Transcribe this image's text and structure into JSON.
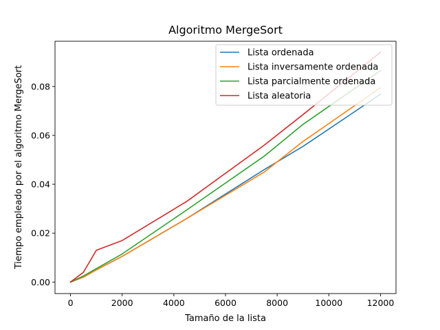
{
  "chart_data": {
    "type": "line",
    "title": "Algoritmo MergeSort",
    "xlabel": "Tamaño de la lista",
    "ylabel": "Tiempo empleado por el algoritmo MergeSort",
    "xlim": [
      -600,
      12600
    ],
    "ylim": [
      -0.0047,
      0.0985
    ],
    "xticks": [
      0,
      2000,
      4000,
      6000,
      8000,
      10000,
      12000
    ],
    "xtick_labels": [
      "0",
      "2000",
      "4000",
      "6000",
      "8000",
      "10000",
      "12000"
    ],
    "yticks": [
      0.0,
      0.02,
      0.04,
      0.06,
      0.08
    ],
    "ytick_labels": [
      "0.00",
      "0.02",
      "0.04",
      "0.06",
      "0.08"
    ],
    "grid": false,
    "legend_position": "upper right",
    "x": [
      0,
      500,
      1000,
      2000,
      4500,
      7500,
      9000,
      12000
    ],
    "series": [
      {
        "name": "Lista ordenada",
        "color": "#1f77b4",
        "values": [
          0.0,
          0.002,
          0.005,
          0.0105,
          0.026,
          0.046,
          0.0555,
          0.0768
        ]
      },
      {
        "name": "Lista inversamente ordenada",
        "color": "#ff7f0e",
        "values": [
          0.0,
          0.002,
          0.005,
          0.0105,
          0.026,
          0.045,
          0.0575,
          0.0795
        ]
      },
      {
        "name": "Lista parcialmente ordenada",
        "color": "#2ca02c",
        "values": [
          0.0,
          0.0025,
          0.0055,
          0.0115,
          0.0295,
          0.0515,
          0.0645,
          0.0865
        ]
      },
      {
        "name": "Lista aleatoria",
        "color": "#d62728",
        "values": [
          0.0,
          0.004,
          0.013,
          0.017,
          0.033,
          0.056,
          0.0685,
          0.094
        ]
      }
    ]
  }
}
